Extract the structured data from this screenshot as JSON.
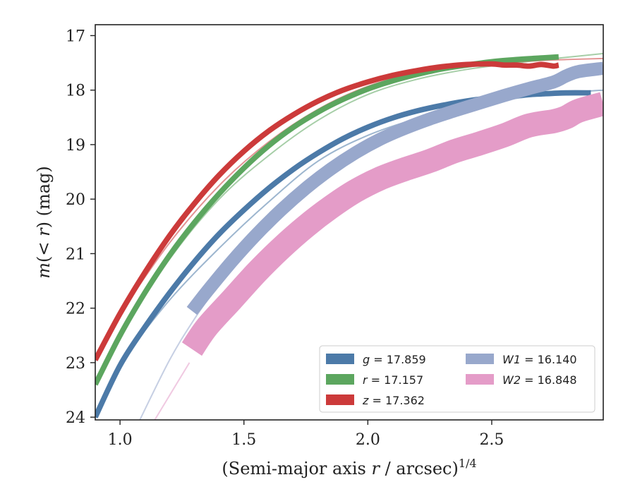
{
  "chart_data": {
    "type": "line",
    "xlabel_main": "(Semi-major axis ",
    "xlabel_var": "r",
    "xlabel_unit": " / arcsec)",
    "xlabel_exp": "1/4",
    "ylabel_main": "m",
    "ylabel_mid": "(< ",
    "ylabel_var": "r",
    "ylabel_end": ") (mag)",
    "xlim": [
      0.9,
      2.95
    ],
    "ylim": [
      24.05,
      16.8
    ],
    "y_inverted": true,
    "xticks": [
      1.0,
      1.5,
      2.0,
      2.5
    ],
    "xtick_labels": [
      "1.0",
      "1.5",
      "2.0",
      "2.5"
    ],
    "yticks": [
      17,
      18,
      19,
      20,
      21,
      22,
      23,
      24
    ],
    "ytick_labels": [
      "17",
      "18",
      "19",
      "20",
      "21",
      "22",
      "23",
      "24"
    ],
    "grid": false,
    "legend_position": "lower-right",
    "legend_columns": 2,
    "series": [
      {
        "name": "g",
        "value": "17.859",
        "color": "#4c7aa8",
        "model_x": [
          1.0,
          1.2,
          1.4,
          1.6,
          1.8,
          2.0,
          2.2,
          2.4,
          2.6,
          2.8,
          2.95
        ],
        "model_y": [
          23.0,
          21.85,
          20.9,
          20.05,
          19.3,
          18.83,
          18.52,
          18.3,
          18.15,
          18.05,
          18.0
        ],
        "x": [
          0.9,
          1.0,
          1.1,
          1.2,
          1.3,
          1.4,
          1.5,
          1.6,
          1.7,
          1.8,
          1.9,
          2.0,
          2.1,
          2.2,
          2.3,
          2.4,
          2.5,
          2.6,
          2.7,
          2.8,
          2.9
        ],
        "y": [
          24.0,
          23.05,
          22.35,
          21.72,
          21.15,
          20.64,
          20.2,
          19.8,
          19.45,
          19.15,
          18.89,
          18.68,
          18.51,
          18.38,
          18.28,
          18.2,
          18.14,
          18.1,
          18.07,
          18.05,
          18.05
        ],
        "band": 0.05
      },
      {
        "name": "r",
        "value": "17.157",
        "color": "#5ca65f",
        "model_x": [
          1.0,
          1.2,
          1.4,
          1.6,
          1.8,
          2.0,
          2.2,
          2.4,
          2.6,
          2.8,
          2.95
        ],
        "model_y": [
          22.5,
          21.1,
          20.0,
          19.2,
          18.55,
          18.08,
          17.8,
          17.62,
          17.5,
          17.4,
          17.33
        ],
        "x": [
          0.9,
          1.0,
          1.1,
          1.2,
          1.3,
          1.4,
          1.5,
          1.6,
          1.7,
          1.8,
          1.9,
          2.0,
          2.1,
          2.2,
          2.3,
          2.4,
          2.5,
          2.6,
          2.7,
          2.77
        ],
        "y": [
          23.4,
          22.5,
          21.72,
          21.03,
          20.43,
          19.9,
          19.43,
          19.02,
          18.68,
          18.4,
          18.17,
          17.98,
          17.83,
          17.71,
          17.61,
          17.54,
          17.48,
          17.44,
          17.41,
          17.39
        ],
        "band": 0.05
      },
      {
        "name": "z",
        "value": "17.362",
        "color": "#cc3a3a",
        "model_x": [
          1.0,
          1.2,
          1.4,
          1.6,
          1.8,
          2.0,
          2.2,
          2.4,
          2.6,
          2.8,
          2.95
        ],
        "model_y": [
          22.1,
          20.8,
          19.75,
          18.95,
          18.35,
          17.93,
          17.68,
          17.55,
          17.48,
          17.44,
          17.42
        ],
        "x": [
          0.9,
          1.0,
          1.1,
          1.2,
          1.3,
          1.4,
          1.5,
          1.6,
          1.7,
          1.8,
          1.9,
          2.0,
          2.1,
          2.2,
          2.3,
          2.4,
          2.5,
          2.55,
          2.6,
          2.65,
          2.7,
          2.75,
          2.77
        ],
        "y": [
          22.95,
          22.1,
          21.35,
          20.67,
          20.08,
          19.56,
          19.12,
          18.75,
          18.45,
          18.2,
          18.0,
          17.85,
          17.73,
          17.64,
          17.57,
          17.53,
          17.52,
          17.54,
          17.54,
          17.56,
          17.53,
          17.56,
          17.54
        ],
        "band": 0.05
      },
      {
        "name": "W1",
        "value": "16.140",
        "color": "#98a8cc",
        "model_x": [
          1.08,
          1.2,
          1.3,
          1.4,
          1.5,
          1.6,
          1.7,
          1.8,
          1.9,
          2.0,
          2.2,
          2.4,
          2.6,
          2.8,
          2.95
        ],
        "model_y": [
          24.05,
          22.95,
          22.2,
          21.55,
          20.95,
          20.45,
          20.0,
          19.62,
          19.3,
          19.02,
          18.6,
          18.25,
          17.98,
          17.78,
          17.65
        ],
        "x": [
          1.29,
          1.35,
          1.45,
          1.55,
          1.65,
          1.75,
          1.85,
          1.95,
          2.05,
          2.15,
          2.25,
          2.35,
          2.45,
          2.55,
          2.65,
          2.75,
          2.8,
          2.85,
          2.95
        ],
        "y": [
          22.05,
          21.7,
          21.15,
          20.65,
          20.2,
          19.8,
          19.45,
          19.15,
          18.9,
          18.7,
          18.53,
          18.38,
          18.24,
          18.1,
          17.97,
          17.85,
          17.74,
          17.66,
          17.6
        ],
        "band": 0.12
      },
      {
        "name": "W2",
        "value": "16.848",
        "color": "#e49cc8",
        "model_x": [
          1.14,
          1.2,
          1.28
        ],
        "model_y": [
          24.05,
          23.6,
          23.0
        ],
        "x": [
          1.29,
          1.35,
          1.45,
          1.55,
          1.65,
          1.75,
          1.85,
          1.95,
          2.05,
          2.15,
          2.25,
          2.35,
          2.45,
          2.55,
          2.65,
          2.75,
          2.8,
          2.85,
          2.95
        ],
        "y": [
          22.75,
          22.35,
          21.85,
          21.35,
          20.9,
          20.5,
          20.15,
          19.85,
          19.62,
          19.45,
          19.3,
          19.12,
          18.98,
          18.83,
          18.65,
          18.57,
          18.5,
          18.38,
          18.25
        ],
        "band": 0.22
      }
    ]
  }
}
